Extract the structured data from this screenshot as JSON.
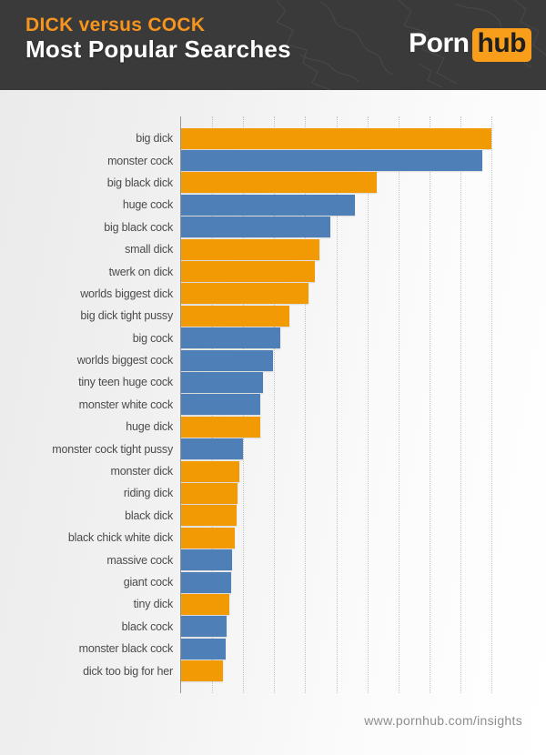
{
  "header": {
    "title_line1": "DICK versus COCK",
    "title_line2": "Most Popular Searches",
    "logo": {
      "part1": "Porn",
      "part2": "hub"
    },
    "colors": {
      "background": "#3a3a3a",
      "accent_orange": "#f7941e",
      "logo_badge": "#f89e1b"
    }
  },
  "chart_data": {
    "type": "bar",
    "orientation": "horizontal",
    "title": "DICK versus COCK — Most Popular Searches",
    "value_unit": "relative search popularity (% of top search)",
    "xlim": [
      0,
      100
    ],
    "grid": true,
    "gridline_count": 10,
    "legend_position": "none",
    "colors": {
      "dick": "#f29a03",
      "cock": "#4e80b7"
    },
    "items": [
      {
        "label": "big dick",
        "group": "dick",
        "value": 100
      },
      {
        "label": "monster cock",
        "group": "cock",
        "value": 97
      },
      {
        "label": "big black dick",
        "group": "dick",
        "value": 63
      },
      {
        "label": "huge cock",
        "group": "cock",
        "value": 56
      },
      {
        "label": "big black cock",
        "group": "cock",
        "value": 48
      },
      {
        "label": "small dick",
        "group": "dick",
        "value": 44.5
      },
      {
        "label": "twerk on dick",
        "group": "dick",
        "value": 43
      },
      {
        "label": "worlds biggest dick",
        "group": "dick",
        "value": 41
      },
      {
        "label": "big dick tight pussy",
        "group": "dick",
        "value": 35
      },
      {
        "label": "big cock",
        "group": "cock",
        "value": 32
      },
      {
        "label": "worlds biggest cock",
        "group": "cock",
        "value": 29.5
      },
      {
        "label": "tiny teen huge cock",
        "group": "cock",
        "value": 26.4
      },
      {
        "label": "monster white cock",
        "group": "cock",
        "value": 25.6
      },
      {
        "label": "huge dick",
        "group": "dick",
        "value": 25.4
      },
      {
        "label": "monster cock tight pussy",
        "group": "cock",
        "value": 19.8
      },
      {
        "label": "monster dick",
        "group": "dick",
        "value": 18.9
      },
      {
        "label": "riding dick",
        "group": "dick",
        "value": 18.2
      },
      {
        "label": "black dick",
        "group": "dick",
        "value": 18.0
      },
      {
        "label": "black chick white dick",
        "group": "dick",
        "value": 17.4
      },
      {
        "label": "massive cock",
        "group": "cock",
        "value": 16.4
      },
      {
        "label": "giant cock",
        "group": "cock",
        "value": 16.1
      },
      {
        "label": "tiny dick",
        "group": "dick",
        "value": 15.4
      },
      {
        "label": "black cock",
        "group": "cock",
        "value": 14.7
      },
      {
        "label": "monster black cock",
        "group": "cock",
        "value": 14.4
      },
      {
        "label": "dick too big for her",
        "group": "dick",
        "value": 13.6
      }
    ]
  },
  "footer": {
    "url": "www.pornhub.com/insights"
  }
}
